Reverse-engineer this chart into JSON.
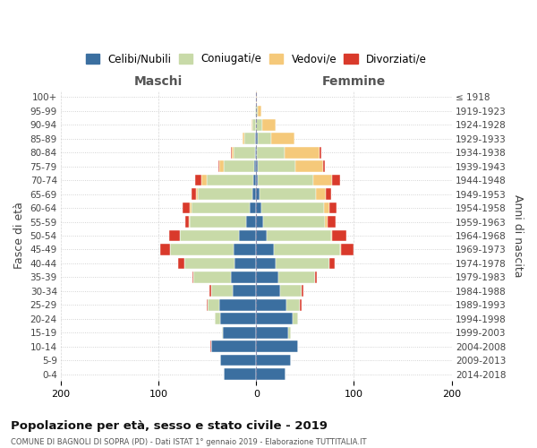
{
  "age_groups": [
    "0-4",
    "5-9",
    "10-14",
    "15-19",
    "20-24",
    "25-29",
    "30-34",
    "35-39",
    "40-44",
    "45-49",
    "50-54",
    "55-59",
    "60-64",
    "65-69",
    "70-74",
    "75-79",
    "80-84",
    "85-89",
    "90-94",
    "95-99",
    "100+"
  ],
  "birth_years": [
    "2014-2018",
    "2009-2013",
    "2004-2008",
    "1999-2003",
    "1994-1998",
    "1989-1993",
    "1984-1988",
    "1979-1983",
    "1974-1978",
    "1969-1973",
    "1964-1968",
    "1959-1963",
    "1954-1958",
    "1949-1953",
    "1944-1948",
    "1939-1943",
    "1934-1938",
    "1929-1933",
    "1924-1928",
    "1919-1923",
    "≤ 1918"
  ],
  "males": {
    "celibi": [
      33,
      37,
      46,
      34,
      37,
      38,
      24,
      26,
      22,
      23,
      18,
      10,
      7,
      4,
      3,
      2,
      1,
      1,
      0,
      0,
      0
    ],
    "coniugati": [
      0,
      0,
      0,
      1,
      5,
      12,
      22,
      38,
      52,
      65,
      60,
      58,
      59,
      56,
      48,
      31,
      22,
      11,
      4,
      1,
      0
    ],
    "vedovi": [
      0,
      0,
      0,
      0,
      0,
      0,
      0,
      0,
      0,
      0,
      0,
      1,
      2,
      2,
      5,
      5,
      2,
      2,
      1,
      0,
      0
    ],
    "divorziati": [
      0,
      0,
      1,
      0,
      0,
      1,
      2,
      1,
      6,
      10,
      11,
      4,
      7,
      4,
      7,
      1,
      1,
      0,
      0,
      0,
      0
    ]
  },
  "females": {
    "nubili": [
      30,
      35,
      43,
      33,
      37,
      31,
      24,
      23,
      20,
      18,
      11,
      7,
      5,
      3,
      2,
      2,
      1,
      2,
      0,
      0,
      0
    ],
    "coniugate": [
      0,
      0,
      0,
      2,
      6,
      14,
      22,
      37,
      55,
      68,
      66,
      63,
      64,
      58,
      56,
      38,
      28,
      13,
      6,
      2,
      0
    ],
    "vedove": [
      0,
      0,
      0,
      0,
      0,
      0,
      0,
      0,
      0,
      1,
      1,
      3,
      6,
      10,
      20,
      28,
      36,
      24,
      14,
      3,
      1
    ],
    "divorziate": [
      0,
      0,
      0,
      0,
      0,
      1,
      2,
      2,
      5,
      13,
      14,
      8,
      7,
      6,
      8,
      2,
      2,
      0,
      0,
      0,
      0
    ]
  },
  "colors": {
    "celibi_nubili": "#3b6fa0",
    "coniugati": "#c8daa8",
    "vedovi": "#f5c97a",
    "divorziati": "#d93a2b"
  },
  "xlim": 200,
  "title": "Popolazione per età, sesso e stato civile - 2019",
  "subtitle": "COMUNE DI BAGNOLI DI SOPRA (PD) - Dati ISTAT 1° gennaio 2019 - Elaborazione TUTTITALIA.IT",
  "ylabel_left": "Fasce di età",
  "ylabel_right": "Anni di nascita"
}
